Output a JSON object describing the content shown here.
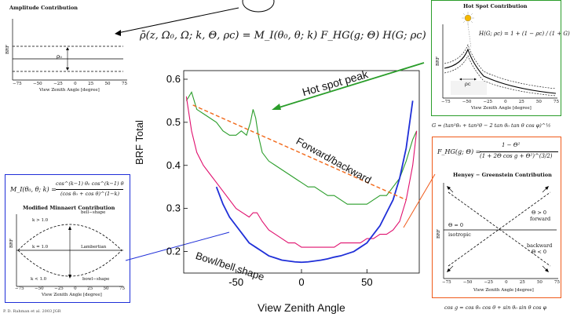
{
  "main_equation": "ρ̄(z, Ω₀, Ω; k, Θ, ρc) = M_I(θ₀, θ; k) F_HG(g; Θ) H(G; ρc)",
  "amplitude_panel": {
    "title": "Amplitude Contribution",
    "ylabel": "BRF",
    "rho_label": "ρ₀",
    "xlabel": "View Zenith Angle [degree]",
    "ticks": [
      "−75",
      "−50",
      "−25",
      "0",
      "25",
      "50",
      "75"
    ]
  },
  "minnaert_panel": {
    "equation_lhs": "M_I(θ₀, θ; k) =",
    "equation_num": "cos^(k−1) θ₀ cos^(k−1) θ",
    "equation_den": "(cos θ₀ + cos θ)^(1−k)",
    "title": "Modified Minnaert Contribution",
    "labels": {
      "k_gt": "k > 1.0",
      "bell": "bell−shape",
      "k_eq": "k = 1.0",
      "lambertian": "Lambertian",
      "k_lt": "k < 1.0",
      "bowl": "bowl−shape"
    },
    "ylabel": "BRF",
    "xlabel": "View Zenith Angle [degree]",
    "ticks": [
      "−75",
      "−50",
      "−25",
      "0",
      "25",
      "50",
      "75"
    ]
  },
  "hotspot_panel": {
    "title": "Hot Spot Contribution",
    "equation": "H(G; ρc) = 1 + (1 − ρc) / (1 + G)",
    "rho_label": "ρc",
    "ylabel": "BRF",
    "xlabel": "View Zenith Angle [degree]",
    "ticks": [
      "−75",
      "−50",
      "−25",
      "0",
      "25",
      "50",
      "75"
    ],
    "g_equation": "G = (tan²θ₀ + tan²θ − 2 tan θ₀ tan θ cos φ)^½"
  },
  "hg_panel": {
    "equation_lhs": "F_HG(g; Θ) =",
    "equation_num": "1 − Θ²",
    "equation_den": "(1 + 2Θ cos g + Θ²)^(3/2)",
    "title": "Henyey − Greenstein Contribution",
    "labels": {
      "forward_theta": "Θ > 0",
      "forward": "forward",
      "iso_theta": "Θ = 0",
      "isotropic": "isotropic",
      "backward": "backward",
      "backward_theta": "Θ < 0"
    },
    "ylabel": "BRF",
    "xlabel": "View Zenith Angle [degree]",
    "ticks": [
      "−75",
      "−50",
      "−25",
      "0",
      "25",
      "50",
      "75"
    ],
    "cos_equation": "cos g = cos θ₀ cos θ + sin θ₀ sin θ cos φ"
  },
  "annotations": {
    "hot_spot": "Hot spot peak",
    "forward_backward": "Forward/backward",
    "bowl_bell": "Bowl/bell shape"
  },
  "footer": "P. D. Rahman et al. 2003 JGR",
  "colors": {
    "green": "#2a9d2a",
    "magenta": "#e0106e",
    "blue": "#1f2fd8",
    "orange": "#f05a1a",
    "dashed": "#f26a1c"
  },
  "chart_data": {
    "type": "line",
    "title": "",
    "xlabel": "View Zenith Angle",
    "ylabel": "BRF Total",
    "xlim": [
      -90,
      90
    ],
    "ylim": [
      0.15,
      0.62
    ],
    "xticks": [
      -50,
      0,
      50
    ],
    "yticks": [
      0.2,
      0.3,
      0.4,
      0.5,
      0.6
    ],
    "xtick_labels": [
      "-50",
      "0",
      "50"
    ],
    "ytick_labels": [
      "0.2",
      "0.3",
      "0.4",
      "0.5",
      "0.6"
    ],
    "grid": false,
    "series": [
      {
        "color": "#2a9d2a",
        "x": [
          -88,
          -84,
          -80,
          -75,
          -70,
          -65,
          -60,
          -55,
          -50,
          -46,
          -42,
          -39,
          -37,
          -35,
          -33,
          -30,
          -25,
          -20,
          -15,
          -10,
          -5,
          0,
          5,
          10,
          15,
          20,
          25,
          30,
          35,
          40,
          45,
          50,
          55,
          60,
          65,
          70,
          75,
          80,
          85,
          88
        ],
        "y": [
          0.55,
          0.57,
          0.53,
          0.52,
          0.51,
          0.5,
          0.48,
          0.47,
          0.47,
          0.48,
          0.47,
          0.5,
          0.53,
          0.51,
          0.47,
          0.43,
          0.41,
          0.4,
          0.39,
          0.38,
          0.37,
          0.36,
          0.35,
          0.35,
          0.34,
          0.33,
          0.33,
          0.32,
          0.31,
          0.31,
          0.31,
          0.31,
          0.32,
          0.33,
          0.33,
          0.35,
          0.37,
          0.41,
          0.46,
          0.48
        ]
      },
      {
        "color": "#e0106e",
        "x": [
          -88,
          -84,
          -80,
          -75,
          -70,
          -65,
          -60,
          -55,
          -50,
          -45,
          -40,
          -37,
          -34,
          -30,
          -25,
          -20,
          -15,
          -10,
          -5,
          0,
          5,
          10,
          15,
          20,
          25,
          30,
          35,
          40,
          45,
          50,
          55,
          60,
          65,
          70,
          75,
          80,
          85,
          88
        ],
        "y": [
          0.56,
          0.48,
          0.43,
          0.4,
          0.38,
          0.36,
          0.34,
          0.32,
          0.3,
          0.29,
          0.28,
          0.29,
          0.29,
          0.27,
          0.25,
          0.24,
          0.23,
          0.22,
          0.22,
          0.21,
          0.21,
          0.21,
          0.21,
          0.21,
          0.21,
          0.22,
          0.22,
          0.22,
          0.22,
          0.23,
          0.23,
          0.24,
          0.24,
          0.25,
          0.27,
          0.32,
          0.4,
          0.48
        ]
      },
      {
        "color": "#1f2fd8",
        "x": [
          -65,
          -60,
          -55,
          -50,
          -45,
          -40,
          -35,
          -30,
          -25,
          -20,
          -15,
          -10,
          -5,
          0,
          5,
          10,
          15,
          20,
          25,
          30,
          35,
          40,
          45,
          50,
          55,
          60,
          65,
          70,
          75,
          80,
          85
        ],
        "y": [
          0.35,
          0.31,
          0.28,
          0.26,
          0.24,
          0.22,
          0.21,
          0.2,
          0.19,
          0.185,
          0.18,
          0.178,
          0.176,
          0.175,
          0.176,
          0.178,
          0.18,
          0.183,
          0.187,
          0.19,
          0.195,
          0.2,
          0.21,
          0.22,
          0.24,
          0.26,
          0.29,
          0.32,
          0.37,
          0.44,
          0.55
        ]
      },
      {
        "color": "#f26a1c",
        "x": [
          -83,
          80
        ],
        "y": [
          0.54,
          0.32
        ]
      }
    ]
  }
}
